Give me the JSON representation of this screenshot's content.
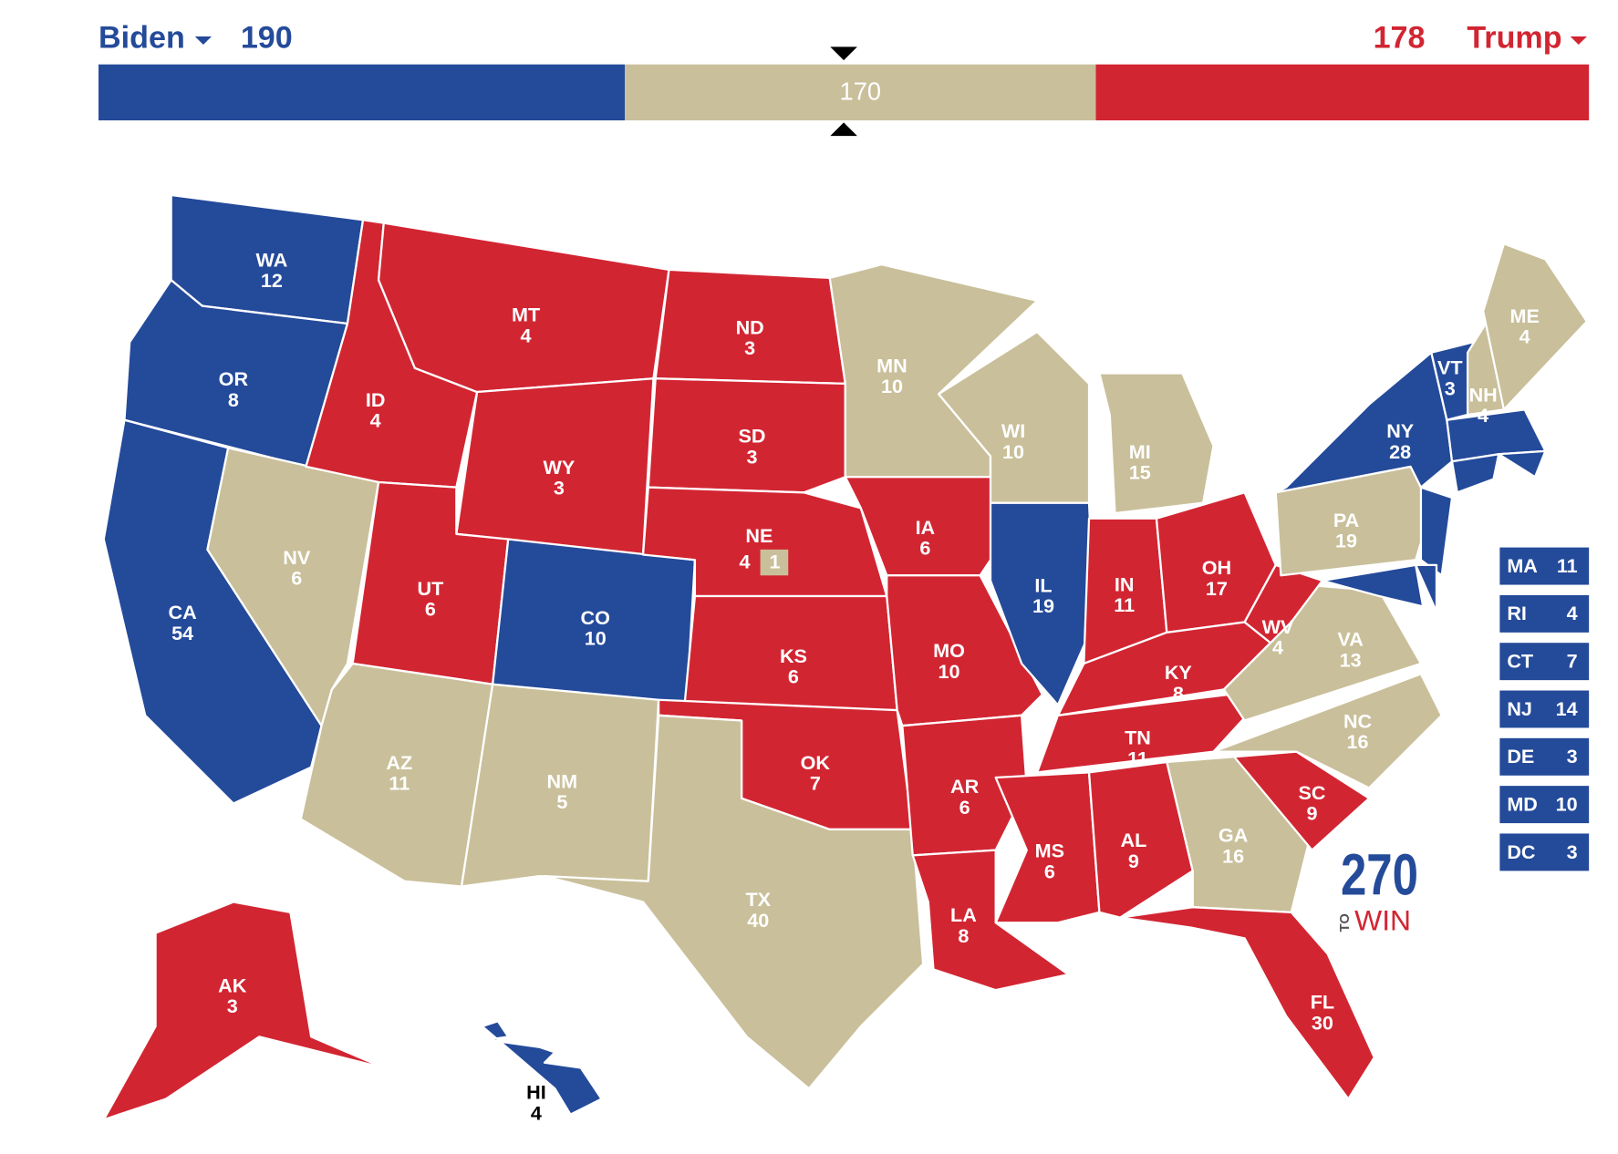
{
  "header": {
    "left_name": "Biden",
    "left_total": 190,
    "right_total": 178,
    "right_name": "Trump"
  },
  "chart_data": {
    "type": "bar",
    "values": [
      190,
      170,
      178
    ],
    "colors": [
      "#244a9a",
      "#c9bf9a",
      "#d22532"
    ]
  },
  "states": [
    {
      "abbr": "WA",
      "ev": 12,
      "color": "#244a9a"
    },
    {
      "abbr": "OR",
      "ev": 8,
      "color": "#244a9a"
    },
    {
      "abbr": "CA",
      "ev": 54,
      "color": "#244a9a"
    },
    {
      "abbr": "NV",
      "ev": 6,
      "color": "#c9bf9a"
    },
    {
      "abbr": "ID",
      "ev": 4,
      "color": "#d22532"
    },
    {
      "abbr": "MT",
      "ev": 4,
      "color": "#d22532"
    },
    {
      "abbr": "WY",
      "ev": 3,
      "color": "#d22532"
    },
    {
      "abbr": "UT",
      "ev": 6,
      "color": "#d22532"
    },
    {
      "abbr": "CO",
      "ev": 10,
      "color": "#244a9a"
    },
    {
      "abbr": "AZ",
      "ev": 11,
      "color": "#c9bf9a"
    },
    {
      "abbr": "NM",
      "ev": 5,
      "color": "#c9bf9a"
    },
    {
      "abbr": "ND",
      "ev": 3,
      "color": "#d22532"
    },
    {
      "abbr": "SD",
      "ev": 3,
      "color": "#d22532"
    },
    {
      "abbr": "NE",
      "ev": 4,
      "color": "#d22532",
      "district_ev": 1,
      "district_color": "#c9bf9a"
    },
    {
      "abbr": "KS",
      "ev": 6,
      "color": "#d22532"
    },
    {
      "abbr": "OK",
      "ev": 7,
      "color": "#d22532"
    },
    {
      "abbr": "TX",
      "ev": 40,
      "color": "#c9bf9a"
    },
    {
      "abbr": "MN",
      "ev": 10,
      "color": "#c9bf9a"
    },
    {
      "abbr": "IA",
      "ev": 6,
      "color": "#d22532"
    },
    {
      "abbr": "MO",
      "ev": 10,
      "color": "#d22532"
    },
    {
      "abbr": "AR",
      "ev": 6,
      "color": "#d22532"
    },
    {
      "abbr": "LA",
      "ev": 8,
      "color": "#d22532"
    },
    {
      "abbr": "WI",
      "ev": 10,
      "color": "#c9bf9a"
    },
    {
      "abbr": "IL",
      "ev": 19,
      "color": "#244a9a"
    },
    {
      "abbr": "MI",
      "ev": 15,
      "color": "#c9bf9a"
    },
    {
      "abbr": "IN",
      "ev": 11,
      "color": "#d22532"
    },
    {
      "abbr": "OH",
      "ev": 17,
      "color": "#d22532"
    },
    {
      "abbr": "KY",
      "ev": 8,
      "color": "#d22532"
    },
    {
      "abbr": "TN",
      "ev": 11,
      "color": "#d22532"
    },
    {
      "abbr": "MS",
      "ev": 6,
      "color": "#d22532"
    },
    {
      "abbr": "AL",
      "ev": 9,
      "color": "#d22532"
    },
    {
      "abbr": "GA",
      "ev": 16,
      "color": "#c9bf9a"
    },
    {
      "abbr": "FL",
      "ev": 30,
      "color": "#d22532"
    },
    {
      "abbr": "SC",
      "ev": 9,
      "color": "#d22532"
    },
    {
      "abbr": "NC",
      "ev": 16,
      "color": "#c9bf9a"
    },
    {
      "abbr": "VA",
      "ev": 13,
      "color": "#c9bf9a"
    },
    {
      "abbr": "WV",
      "ev": 4,
      "color": "#d22532"
    },
    {
      "abbr": "PA",
      "ev": 19,
      "color": "#c9bf9a"
    },
    {
      "abbr": "NY",
      "ev": 28,
      "color": "#244a9a"
    },
    {
      "abbr": "VT",
      "ev": 3,
      "color": "#244a9a"
    },
    {
      "abbr": "NH",
      "ev": 4,
      "color": "#c9bf9a"
    },
    {
      "abbr": "ME",
      "ev": 4,
      "color": "#c9bf9a"
    },
    {
      "abbr": "AK",
      "ev": 3,
      "color": "#d22532"
    },
    {
      "abbr": "HI",
      "ev": 4,
      "color": "#244a9a"
    }
  ],
  "small_states": [
    {
      "abbr": "MA",
      "ev": 11,
      "color": "#244a9a"
    },
    {
      "abbr": "RI",
      "ev": 4,
      "color": "#244a9a"
    },
    {
      "abbr": "CT",
      "ev": 7,
      "color": "#244a9a"
    },
    {
      "abbr": "NJ",
      "ev": 14,
      "color": "#244a9a"
    },
    {
      "abbr": "DE",
      "ev": 3,
      "color": "#244a9a"
    },
    {
      "abbr": "MD",
      "ev": 10,
      "color": "#244a9a"
    },
    {
      "abbr": "DC",
      "ev": 3,
      "color": "#244a9a"
    }
  ],
  "logo": {
    "number": "270",
    "to": "TO",
    "win": "WIN"
  }
}
